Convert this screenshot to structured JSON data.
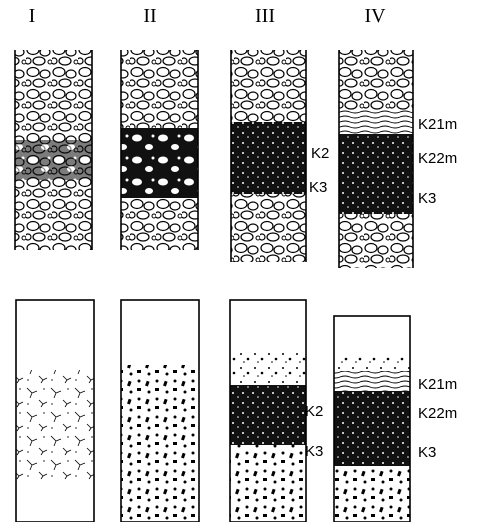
{
  "columns": [
    "I",
    "II",
    "III",
    "IV"
  ],
  "upper": {
    "column_III": [
      "K2",
      "K3"
    ],
    "column_IV": [
      "K21m",
      "K22m",
      "K3"
    ]
  },
  "lower": {
    "column_III": [
      "K2",
      "K3"
    ],
    "column_IV": [
      "K21m",
      "K22m",
      "K3"
    ]
  }
}
